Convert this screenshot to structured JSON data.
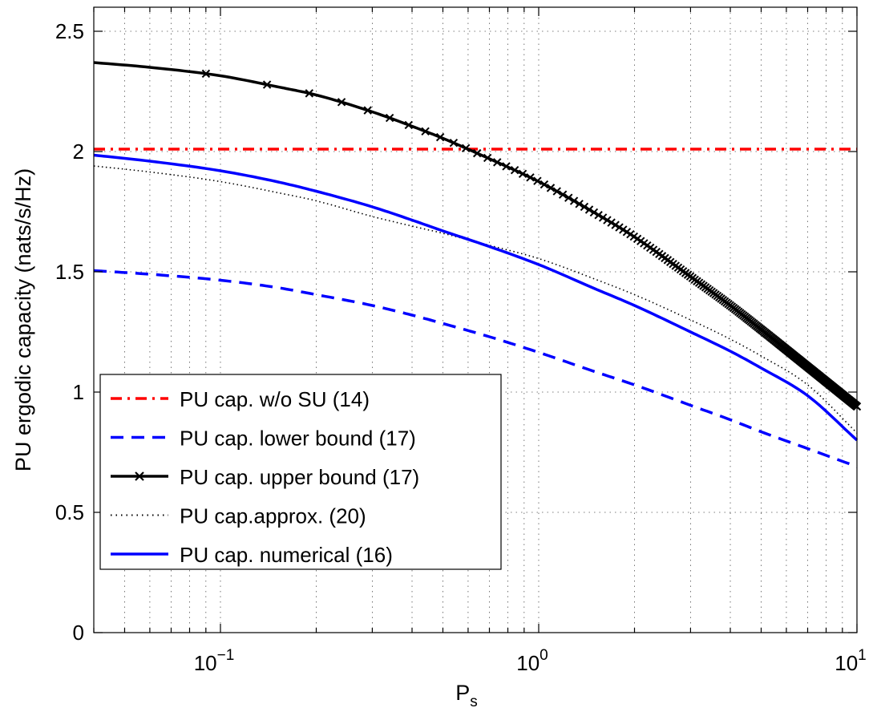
{
  "chart_data": {
    "type": "line",
    "xscale": "log",
    "xlim": [
      0.04,
      10
    ],
    "ylim": [
      0,
      2.6
    ],
    "grid": true,
    "xlabel": "P",
    "xlabel_sub": "s",
    "ylabel": "PU ergodic capacity (nats/s/Hz)",
    "xticks": [
      {
        "value": 0.1,
        "base": "10",
        "exp": "−1"
      },
      {
        "value": 1,
        "base": "10",
        "exp": "0"
      },
      {
        "value": 10,
        "base": "10",
        "exp": "1"
      }
    ],
    "yticks": [
      {
        "value": 0,
        "label": "0"
      },
      {
        "value": 0.5,
        "label": "0.5"
      },
      {
        "value": 1,
        "label": "1"
      },
      {
        "value": 1.5,
        "label": "1.5"
      },
      {
        "value": 2,
        "label": "2"
      },
      {
        "value": 2.5,
        "label": "2.5"
      }
    ],
    "legend_position": "bottom-left",
    "series": [
      {
        "name": "PU cap. w/o SU (14)",
        "color": "#ff0000",
        "style": "dash-dot",
        "x": [
          0.04,
          10
        ],
        "y": [
          2.01,
          2.01
        ]
      },
      {
        "name": "PU cap. lower bound (17)",
        "color": "#0000ff",
        "style": "dashed",
        "x": [
          0.04,
          0.06,
          0.1,
          0.15,
          0.2,
          0.3,
          0.4,
          0.5,
          0.7,
          1.0,
          1.5,
          2.0,
          3.0,
          4.0,
          5.0,
          7.0,
          10.0
        ],
        "y": [
          1.505,
          1.49,
          1.465,
          1.435,
          1.405,
          1.36,
          1.32,
          1.285,
          1.23,
          1.165,
          1.085,
          1.03,
          0.945,
          0.885,
          0.835,
          0.765,
          0.69
        ]
      },
      {
        "name": "PU cap. upper bound (17)",
        "color": "#000000",
        "style": "solid-x-markers",
        "x": [
          0.04,
          0.06,
          0.1,
          0.15,
          0.2,
          0.3,
          0.4,
          0.5,
          0.7,
          1.0,
          1.5,
          2.0,
          3.0,
          4.0,
          5.0,
          7.0,
          10.0
        ],
        "y": [
          2.37,
          2.35,
          2.315,
          2.27,
          2.235,
          2.165,
          2.105,
          2.055,
          1.97,
          1.875,
          1.745,
          1.645,
          1.48,
          1.36,
          1.26,
          1.105,
          0.94
        ]
      },
      {
        "name": "PU cap.approx. (20)",
        "color": "#000000",
        "style": "dotted",
        "x": [
          0.04,
          0.06,
          0.1,
          0.15,
          0.2,
          0.3,
          0.4,
          0.5,
          0.7,
          1.0,
          1.5,
          2.0,
          3.0,
          4.0,
          5.0,
          7.0,
          10.0
        ],
        "y": [
          1.94,
          1.915,
          1.875,
          1.83,
          1.795,
          1.73,
          1.69,
          1.66,
          1.61,
          1.555,
          1.47,
          1.405,
          1.3,
          1.22,
          1.15,
          1.03,
          0.83
        ]
      },
      {
        "name": "PU cap. numerical (16)",
        "color": "#0000ff",
        "style": "solid",
        "x": [
          0.04,
          0.06,
          0.1,
          0.15,
          0.2,
          0.3,
          0.4,
          0.5,
          0.7,
          1.0,
          1.5,
          2.0,
          3.0,
          4.0,
          5.0,
          7.0,
          10.0
        ],
        "y": [
          1.985,
          1.96,
          1.92,
          1.875,
          1.835,
          1.77,
          1.715,
          1.67,
          1.605,
          1.53,
          1.43,
          1.36,
          1.25,
          1.17,
          1.1,
          0.985,
          0.8
        ]
      }
    ]
  }
}
